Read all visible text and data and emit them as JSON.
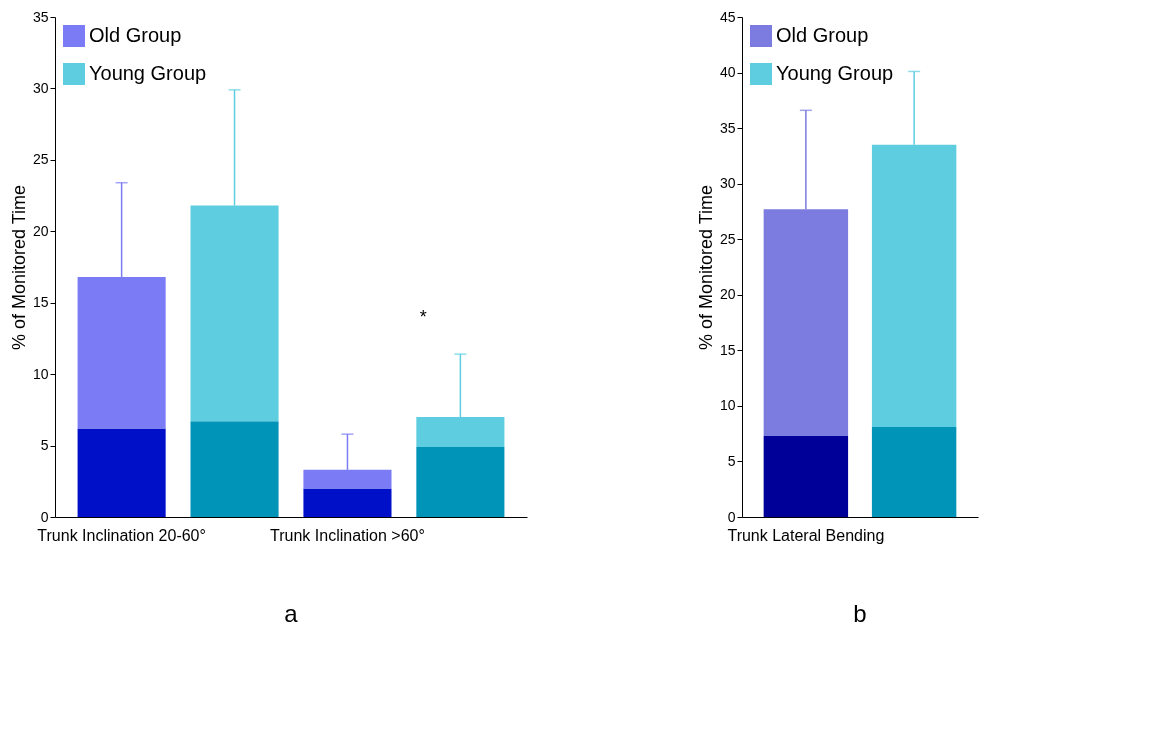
{
  "chart_data": [
    {
      "type": "bar",
      "title": "a",
      "ylabel": "% of Monitored Time",
      "categories": [
        "Trunk Inclination 20-60°",
        null,
        "Trunk Inclination >60°",
        null
      ],
      "stacked": true,
      "legend": "top left",
      "ylim": [
        0,
        35
      ],
      "yticks": [
        0,
        5,
        10,
        15,
        20,
        25,
        30,
        35
      ],
      "series": [
        {
          "color": "#0010c8",
          "values": [
            6.2,
            null,
            2.0,
            null
          ]
        },
        {
          "name": "Old Group",
          "color": "#7b7bf5",
          "values": [
            10.6,
            null,
            1.3,
            null
          ],
          "errors": [
            [
              16.8,
              23.4
            ],
            null,
            [
              3.3,
              5.8
            ],
            null
          ]
        },
        {
          "color": "#0094b8",
          "values": [
            null,
            6.7,
            null,
            4.9
          ]
        },
        {
          "name": "Young Group",
          "color": "#5ecde0",
          "values": [
            null,
            15.1,
            null,
            2.1
          ],
          "errors": [
            null,
            [
              21.8,
              29.9
            ],
            null,
            [
              7.0,
              11.4
            ]
          ]
        }
      ],
      "annotations": [
        "*"
      ]
    },
    {
      "type": "bar",
      "title": "b",
      "ylabel": "% of Monitored Time",
      "categories": [
        "Trunk Lateral Bending",
        null
      ],
      "stacked": true,
      "legend": "top left",
      "ylim": [
        0,
        45
      ],
      "yticks": [
        0,
        5,
        10,
        15,
        20,
        25,
        30,
        35,
        40,
        45
      ],
      "series": [
        {
          "color": "#000099",
          "values": [
            7.3,
            null
          ]
        },
        {
          "name": "Old Group",
          "color": "#7b7be0",
          "values": [
            20.4,
            null
          ],
          "errors": [
            [
              27.7,
              36.6
            ],
            null
          ]
        },
        {
          "color": "#0094b8",
          "values": [
            null,
            8.1
          ]
        },
        {
          "name": "Young Group",
          "color": "#5ecde0",
          "values": [
            null,
            25.4
          ],
          "errors": [
            null,
            [
              33.5,
              40.1
            ]
          ]
        }
      ]
    }
  ]
}
